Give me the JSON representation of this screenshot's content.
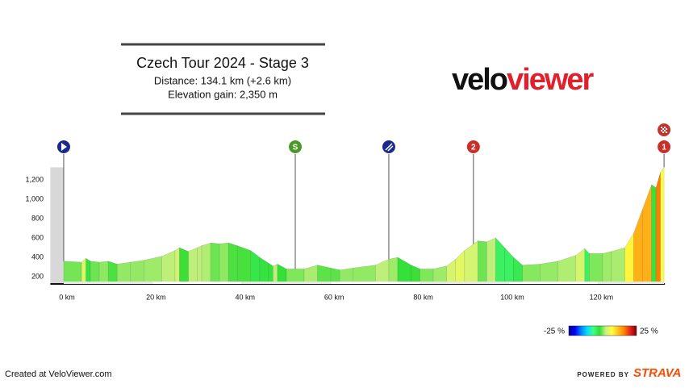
{
  "chart_data": {
    "type": "elevation",
    "title": "Czech Tour 2024 - Stage 3",
    "subtitle": [
      "Distance: 134.1 km (+2.6 km)",
      "Elevation gain: 2,350 m"
    ],
    "brand": [
      "velo",
      "viewer"
    ],
    "x": [
      0,
      4,
      5,
      6,
      8,
      10,
      12,
      15,
      18,
      22,
      25,
      26,
      28,
      30,
      31,
      33,
      35,
      37,
      39,
      42,
      44,
      46,
      47,
      48,
      50,
      54,
      57,
      60,
      62,
      65,
      70,
      73,
      75,
      78,
      80,
      83,
      86,
      88,
      90,
      93,
      95,
      97,
      99,
      101,
      103,
      107,
      111,
      115,
      117,
      118,
      121,
      123,
      126,
      128,
      130,
      132,
      133,
      134,
      134.8
    ],
    "values": [
      360,
      350,
      390,
      360,
      350,
      360,
      330,
      350,
      370,
      410,
      470,
      500,
      460,
      500,
      520,
      550,
      540,
      550,
      520,
      470,
      400,
      340,
      310,
      330,
      280,
      280,
      320,
      290,
      270,
      290,
      320,
      380,
      400,
      320,
      280,
      280,
      310,
      380,
      470,
      570,
      560,
      600,
      500,
      400,
      320,
      330,
      360,
      420,
      490,
      440,
      440,
      460,
      500,
      650,
      900,
      1150,
      1120,
      1280,
      1330
    ],
    "markers": [
      {
        "x": 0,
        "label": null,
        "color": "#1a2a8c"
      },
      {
        "x": 52,
        "label": "S",
        "color": "#4a9a2a"
      },
      {
        "x": 73,
        "label": null,
        "color": "#1a2a8c"
      },
      {
        "x": 92,
        "label": "2",
        "color": "#c8302a"
      },
      {
        "x": 134.8,
        "label": "1",
        "color": "#c8302a"
      }
    ],
    "xlim": [
      -3,
      135
    ],
    "ylim": [
      125,
      1400
    ],
    "xticks": [
      {
        "value": 0,
        "label": "0 km"
      },
      {
        "value": 20,
        "label": "20 km"
      },
      {
        "value": 40,
        "label": "40 km"
      },
      {
        "value": 60,
        "label": "60 km"
      },
      {
        "value": 80,
        "label": "80 km"
      },
      {
        "value": 100,
        "label": "100 km"
      },
      {
        "value": 120,
        "label": "120 km"
      }
    ],
    "yticks": [
      200,
      400,
      600,
      800,
      {
        "value": 1000,
        "label": "1,000"
      },
      {
        "value": 1200,
        "label": "1,200"
      }
    ],
    "colorscale": [
      "#000080",
      "#0000ff",
      "#0080ff",
      "#00e0ff",
      "#40ff80",
      "#33dd33",
      "#c8f080",
      "#ffff40",
      "#ffc020",
      "#ff8000",
      "#e02020",
      "#800000"
    ],
    "colorbar_ticks": [
      {
        "value": -25,
        "label": "-25 %"
      },
      {
        "value": 25,
        "label": "25 %"
      }
    ],
    "footer": "Created at VeloViewer.com",
    "powered_by": "POWERED BY",
    "strava": "STRAVA"
  }
}
